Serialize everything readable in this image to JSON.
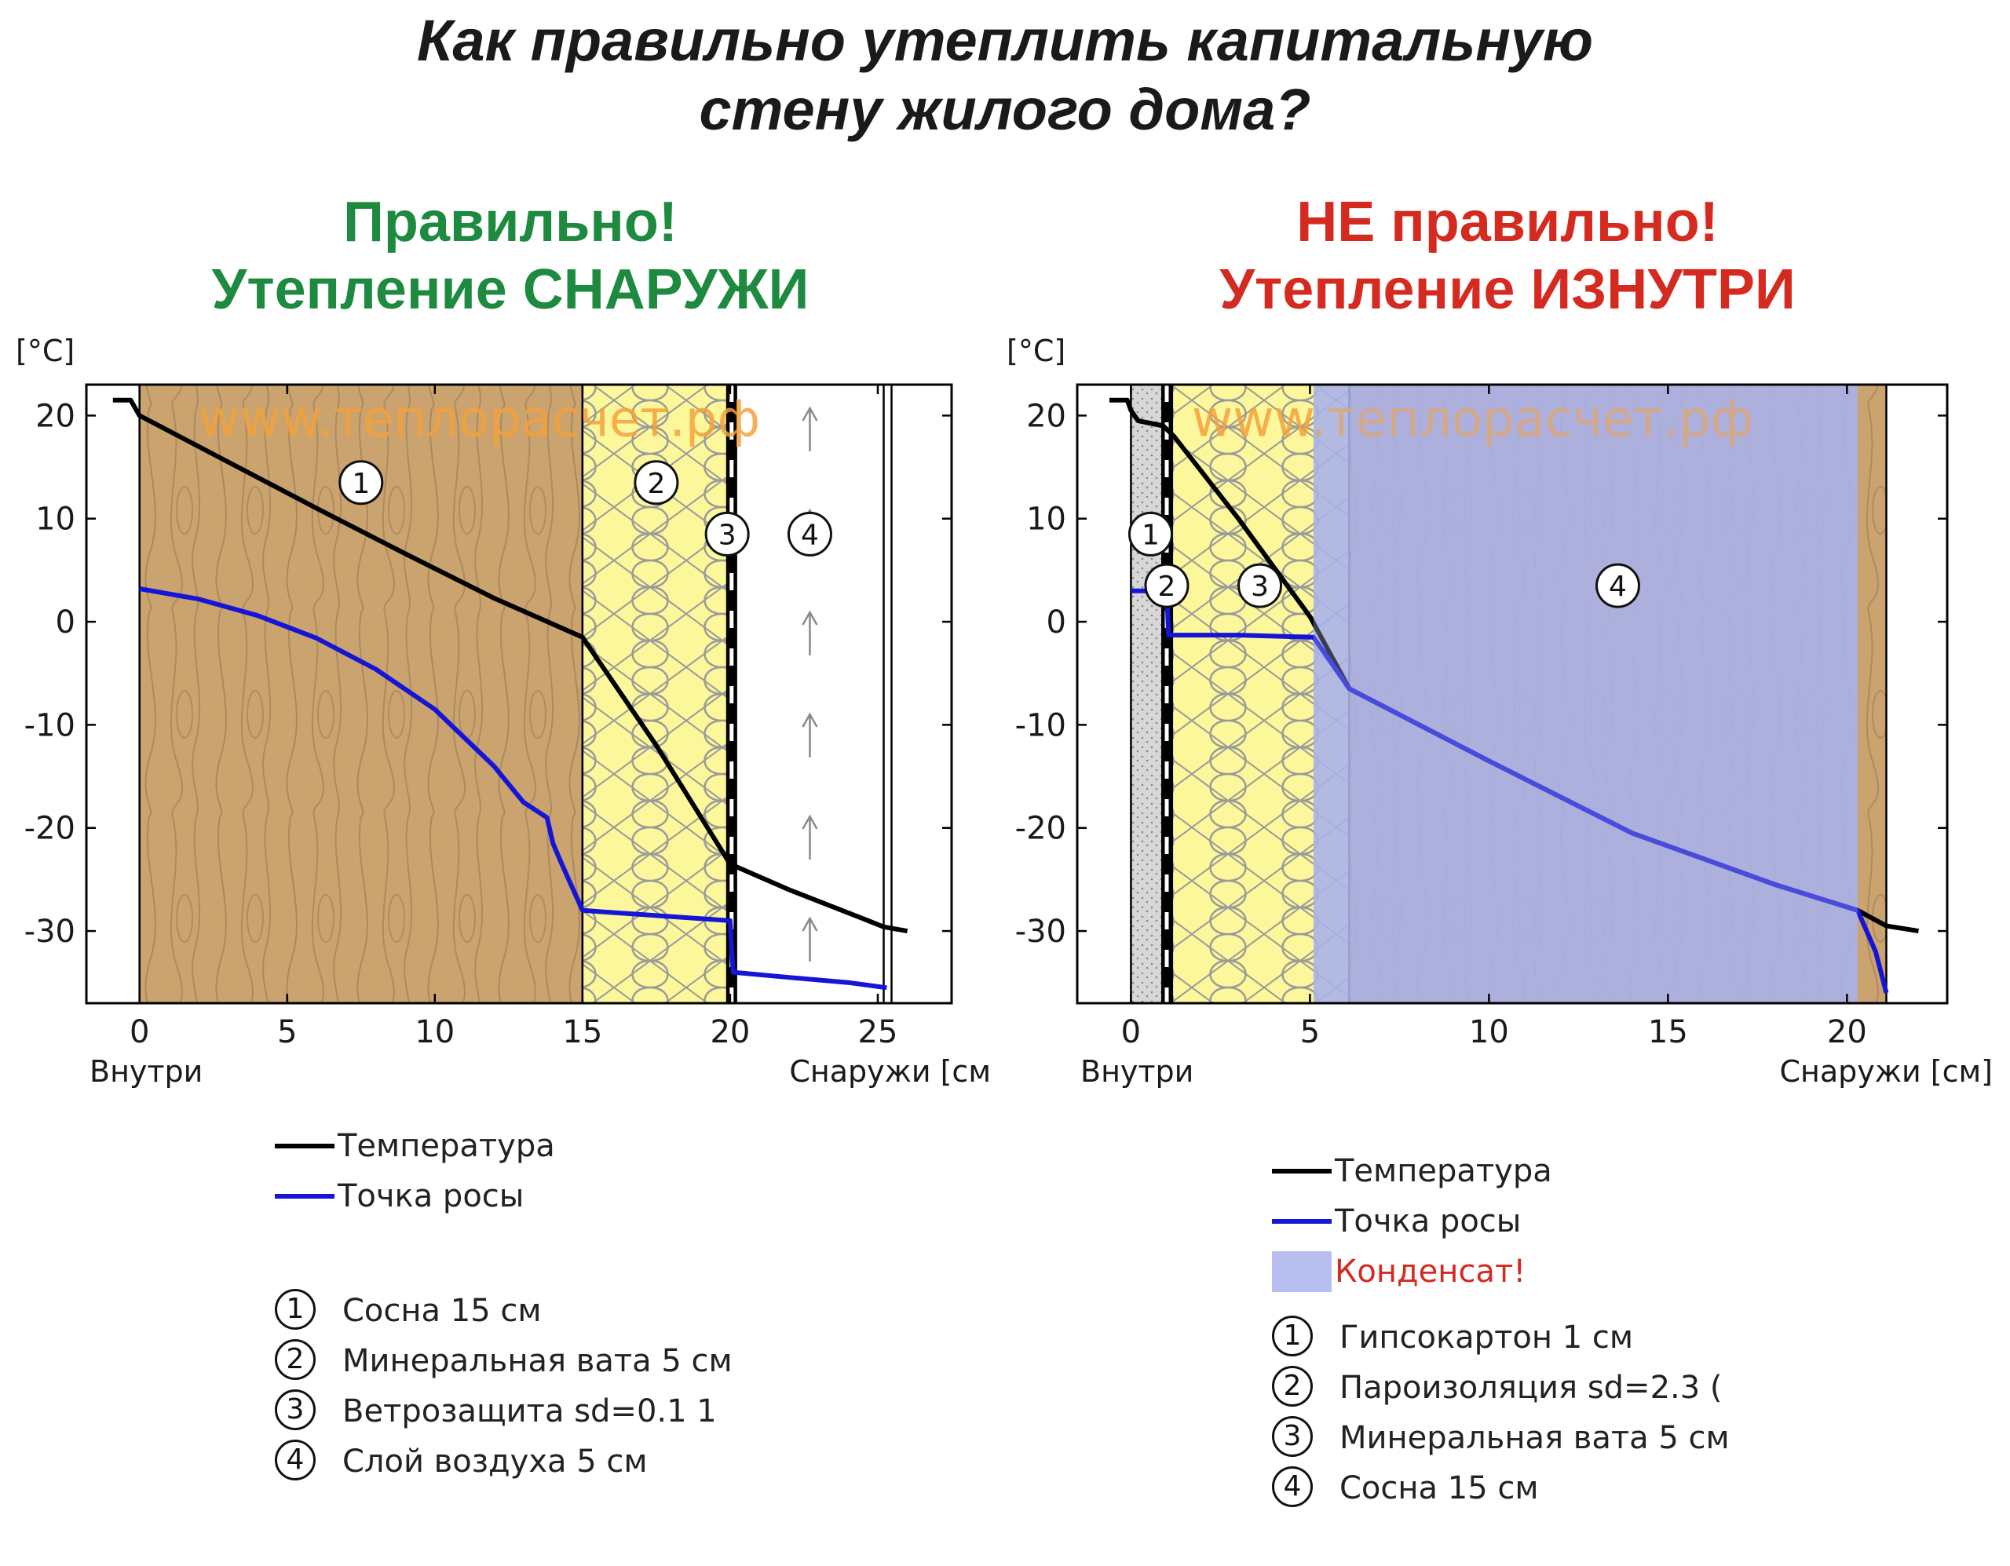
{
  "title_line1": "Как правильно утеплить капитальную",
  "title_line2": "стену жилого дома?",
  "left": {
    "heading1": "Правильно!",
    "heading2": "Утепление СНАРУЖИ",
    "heading_color": "#1d8a3f",
    "legend": {
      "temperature": "Температура",
      "dewpoint": "Точка росы",
      "layers": [
        {
          "num": "1",
          "label": "Сосна 15 см"
        },
        {
          "num": "2",
          "label": "Минеральная вата 5 см"
        },
        {
          "num": "3",
          "label": "Ветрозащита sd=0.1 1"
        },
        {
          "num": "4",
          "label": "Слой воздуха 5 см"
        }
      ]
    }
  },
  "right": {
    "heading1": "НЕ правильно!",
    "heading2": "Утепление ИЗНУТРИ",
    "heading_color": "#d42a20",
    "legend": {
      "temperature": "Температура",
      "dewpoint": "Точка росы",
      "condensate": "Конденсат!",
      "condensate_color": "#d42a20",
      "layers": [
        {
          "num": "1",
          "label": "Гипсокартон 1 см"
        },
        {
          "num": "2",
          "label": "Пароизоляция sd=2.3 ("
        },
        {
          "num": "3",
          "label": "Минеральная вата 5 см"
        },
        {
          "num": "4",
          "label": "Сосна 15 см"
        }
      ]
    }
  },
  "chart_data": [
    {
      "type": "line",
      "ylabel": "[°C]",
      "xlabel_left": "Внутри",
      "xlabel_right": "Снаружи [см",
      "watermark": "www.теплорасчет.рф",
      "xlim": [
        -1.8,
        27.5
      ],
      "ylim": [
        -37,
        23
      ],
      "x_ticks": [
        0,
        5,
        10,
        15,
        20,
        25
      ],
      "y_ticks": [
        20,
        10,
        0,
        -10,
        -20,
        -30
      ],
      "colors": {
        "temperature": "#000000",
        "dewpoint": "#1515d8",
        "wood": "#caa36f",
        "wool": "#fbf79a",
        "air": "#ffffff"
      },
      "layers": [
        {
          "num": "1",
          "material": "wood",
          "x0": 0,
          "x1": 15,
          "label_x": 7.5,
          "label_y": 13.5
        },
        {
          "num": "2",
          "material": "wool",
          "x0": 15,
          "x1": 20,
          "label_x": 17.5,
          "label_y": 13.5
        },
        {
          "num": "3",
          "material": "membrane",
          "x0": 19.9,
          "x1": 20.2,
          "label_x": 19.9,
          "label_y": 8.5
        },
        {
          "num": "4",
          "material": "air",
          "x0": 20.2,
          "x1": 25.2,
          "label_x": 22.7,
          "label_y": 8.5
        }
      ],
      "series": [
        {
          "name": "Температура",
          "x": [
            -0.9,
            -0.3,
            0,
            3,
            6,
            9,
            12,
            15,
            17.5,
            20,
            22,
            24.5,
            25.2,
            26
          ],
          "y": [
            21.5,
            21.5,
            20,
            15.5,
            11,
            6.6,
            2.3,
            -1.5,
            -12,
            -23.5,
            -26,
            -28.8,
            -29.6,
            -30
          ]
        },
        {
          "name": "Точка росы",
          "x": [
            0,
            2,
            4,
            6,
            8,
            10,
            12,
            13,
            13.8,
            14,
            14.3,
            15,
            20,
            20.1,
            22,
            24,
            25.3
          ],
          "y": [
            3.2,
            2.2,
            0.6,
            -1.6,
            -4.6,
            -8.5,
            -14,
            -17.5,
            -19,
            -21.5,
            -23.5,
            -28,
            -29,
            -34,
            -34.5,
            -35,
            -35.5
          ]
        }
      ]
    },
    {
      "type": "line",
      "ylabel": "[°C]",
      "xlabel_left": "Внутри",
      "xlabel_right": "Снаружи [см]",
      "watermark": "www.теплорасчет.рф",
      "xlim": [
        -1.5,
        22.8
      ],
      "ylim": [
        -37,
        23
      ],
      "x_ticks": [
        0,
        5,
        10,
        15,
        20
      ],
      "y_ticks": [
        20,
        10,
        0,
        -10,
        -20,
        -30
      ],
      "colors": {
        "temperature": "#000000",
        "dewpoint": "#1515d8",
        "condensate": "#aab2ec",
        "drywall": "#d4d4d4",
        "wood": "#caa36f",
        "wool": "#fbf79a"
      },
      "condensate_zone": [
        5.1,
        20.3
      ],
      "layers": [
        {
          "num": "1",
          "material": "drywall",
          "x0": 0,
          "x1": 1.0,
          "label_x": 0.55,
          "label_y": 8.5
        },
        {
          "num": "2",
          "material": "vapour barrier",
          "x0": 0.85,
          "x1": 1.15,
          "label_x": 1.0,
          "label_y": 3.5
        },
        {
          "num": "3",
          "material": "wool",
          "x0": 1.15,
          "x1": 6.1,
          "label_x": 3.6,
          "label_y": 3.5
        },
        {
          "num": "4",
          "material": "wood",
          "x0": 6.1,
          "x1": 21.1,
          "label_x": 13.6,
          "label_y": 3.5
        }
      ],
      "series": [
        {
          "name": "Температура",
          "x": [
            -0.6,
            -0.1,
            0,
            0.2,
            0.9,
            1.2,
            3,
            5,
            6.1,
            10,
            14,
            18,
            20.3,
            21.1,
            22
          ],
          "y": [
            21.5,
            21.5,
            20.5,
            19.5,
            19,
            18,
            10,
            0.5,
            -6.5,
            -13.5,
            -20.5,
            -25.5,
            -28,
            -29.5,
            -30
          ]
        },
        {
          "name": "Точка росы",
          "x": [
            0,
            0.95,
            1.0,
            1.05,
            3,
            5.1,
            6.1,
            10,
            14,
            18,
            20.3,
            20.8,
            21.1
          ],
          "y": [
            3,
            3,
            3,
            -1.3,
            -1.3,
            -1.5,
            -6.5,
            -13.5,
            -20.5,
            -25.5,
            -28,
            -32,
            -36
          ]
        }
      ]
    }
  ]
}
